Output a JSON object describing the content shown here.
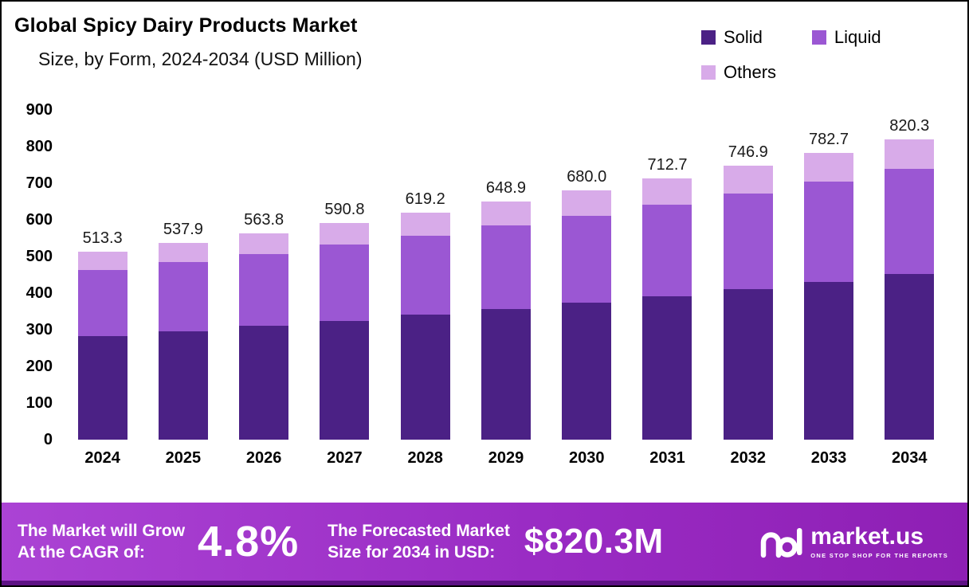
{
  "header": {
    "title": "Global Spicy Dairy Products Market",
    "subtitle": "Size, by Form, 2024-2034 (USD Million)"
  },
  "legend": [
    {
      "label": "Solid",
      "color": "#4b2185"
    },
    {
      "label": "Liquid",
      "color": "#9b57d3"
    },
    {
      "label": "Others",
      "color": "#d8abe9"
    }
  ],
  "chart_data": {
    "type": "bar",
    "stacked": true,
    "title": "Global Spicy Dairy Products Market Size, by Form, 2024-2034 (USD Million)",
    "categories": [
      "2024",
      "2025",
      "2026",
      "2027",
      "2028",
      "2029",
      "2030",
      "2031",
      "2032",
      "2033",
      "2034"
    ],
    "series": [
      {
        "name": "Solid",
        "color": "#4b2185",
        "values": [
          282.3,
          295.8,
          310.1,
          325.0,
          340.6,
          356.9,
          374.0,
          392.0,
          410.8,
          430.5,
          451.2
        ]
      },
      {
        "name": "Liquid",
        "color": "#9b57d3",
        "values": [
          179.7,
          188.3,
          197.3,
          206.8,
          216.7,
          227.1,
          238.0,
          249.4,
          261.4,
          274.0,
          287.1
        ]
      },
      {
        "name": "Others",
        "color": "#d8abe9",
        "values": [
          51.3,
          53.8,
          56.4,
          59.0,
          61.9,
          64.9,
          68.0,
          71.3,
          74.7,
          78.2,
          82.0
        ]
      }
    ],
    "totals": [
      513.3,
      537.9,
      563.8,
      590.8,
      619.2,
      648.9,
      680.0,
      712.7,
      746.9,
      782.7,
      820.3
    ],
    "totals_display": [
      "513.3",
      "537.9",
      "563.8",
      "590.8",
      "619.2",
      "648.9",
      "680.0",
      "712.7",
      "746.9",
      "782.7",
      "820.3"
    ],
    "xlabel": "",
    "ylabel": "",
    "ylim": [
      0,
      900
    ],
    "yticks": [
      0,
      100,
      200,
      300,
      400,
      500,
      600,
      700,
      800,
      900
    ],
    "grid": false,
    "legend_position": "top-right"
  },
  "banner": {
    "cagr_label_line1": "The Market will Grow",
    "cagr_label_line2": "At the CAGR of:",
    "cagr_value": "4.8%",
    "forecast_label_line1": "The Forecasted Market",
    "forecast_label_line2": "Size for 2034 in USD:",
    "forecast_value": "$820.3M",
    "brand": "market.us",
    "brand_tagline": "ONE STOP SHOP FOR THE REPORTS"
  }
}
